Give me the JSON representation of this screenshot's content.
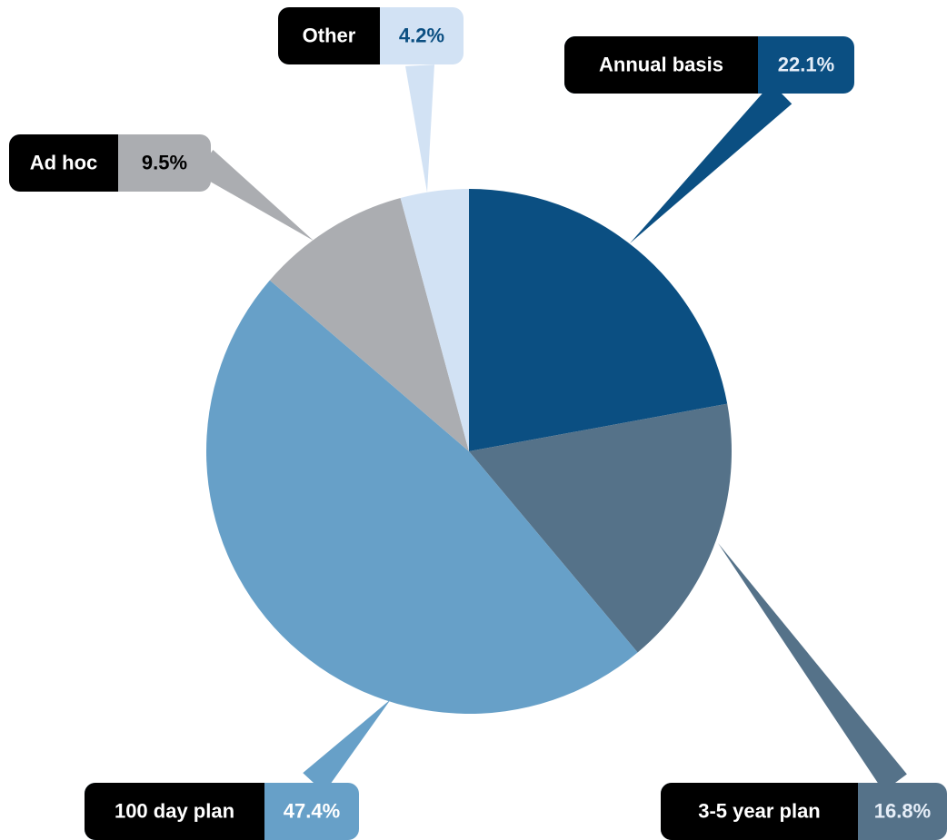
{
  "chart_data": {
    "type": "pie",
    "categories": [
      "Annual basis",
      "3-5 year plan",
      "100 day plan",
      "Ad hoc",
      "Other"
    ],
    "values": [
      22.1,
      16.8,
      47.4,
      9.5,
      4.2
    ],
    "value_labels": [
      "22.1%",
      "16.8%",
      "47.4%",
      "9.5%",
      "4.2%"
    ],
    "colors": [
      "#0b4f82",
      "#557289",
      "#67a0c8",
      "#abadb1",
      "#d2e2f4"
    ]
  }
}
